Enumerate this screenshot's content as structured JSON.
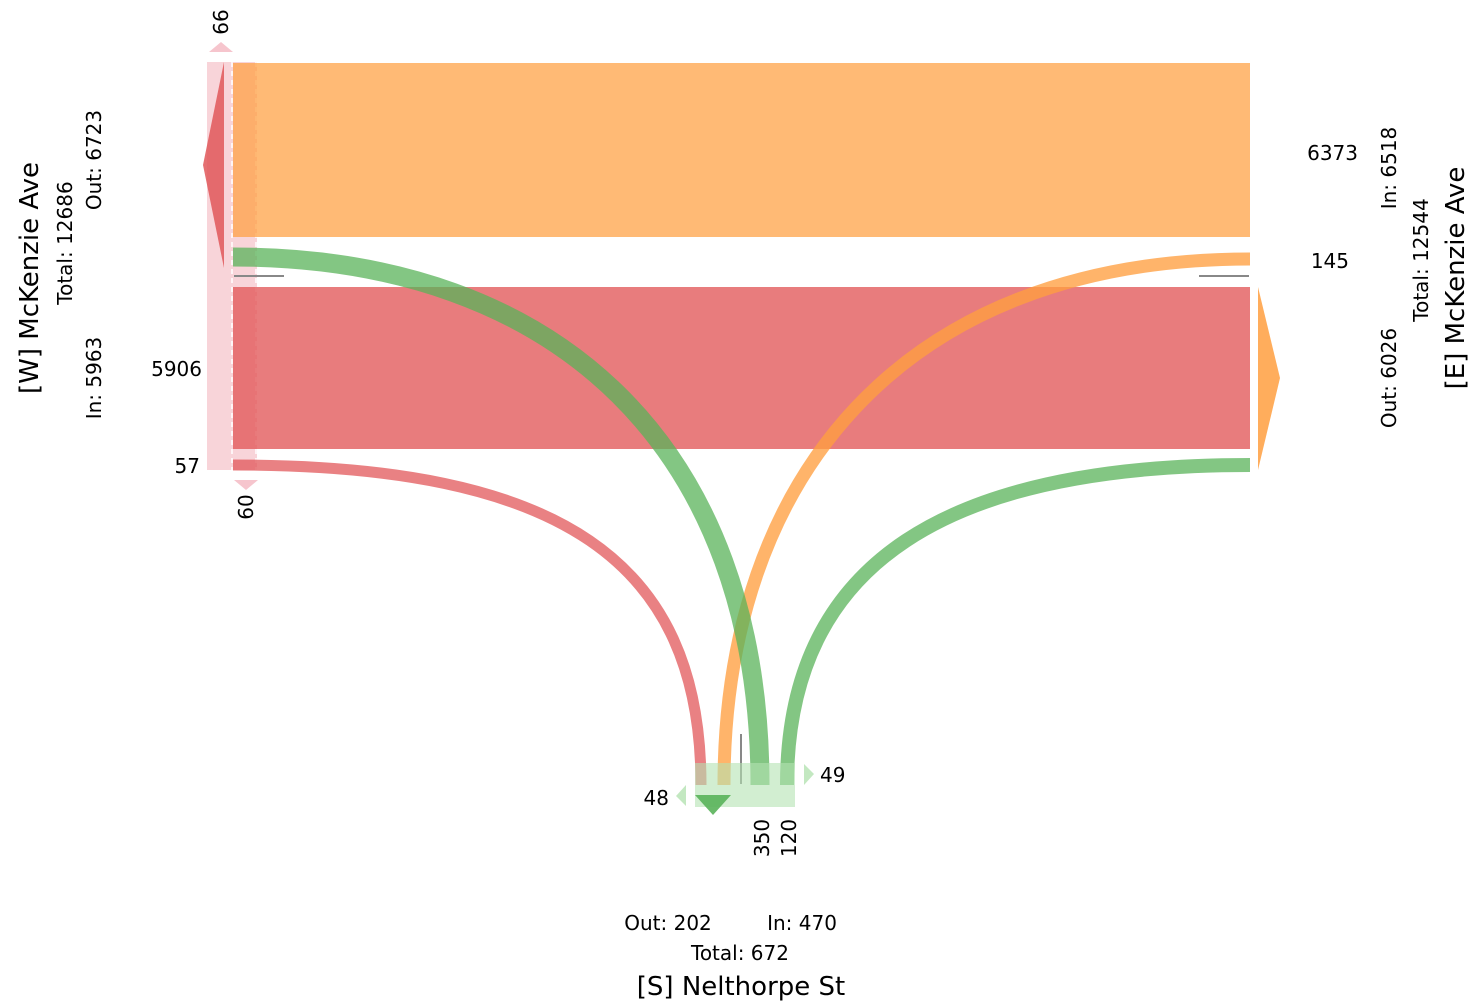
{
  "approaches": {
    "west": {
      "name": "[W] McKenzie Ave",
      "total": "Total: 12686",
      "in": "In: 5963",
      "out": "Out: 6723",
      "color": "#e15759"
    },
    "east": {
      "name": "[E] McKenzie Ave",
      "total": "Total: 12544",
      "in": "In: 6518",
      "out": "Out: 6026",
      "color": "#ff9f40"
    },
    "south": {
      "name": "[S] Nelthorpe St",
      "total": "Total: 672",
      "in": "In: 470",
      "out": "Out: 202",
      "color": "#59b35a"
    }
  },
  "labels": {
    "w_uturn_top": "66",
    "w_uturn_bottom": "60",
    "w_through": "5906",
    "w_right": "57",
    "e_through": "6373",
    "e_left": "145",
    "s_left_out": "48",
    "s_right_out": "49",
    "s_through_a": "350",
    "s_through_b": "120"
  },
  "flows": [
    {
      "from": "east",
      "to": "west",
      "value": 6373,
      "color": "#ff9f40"
    },
    {
      "from": "west",
      "to": "east",
      "value": 5906,
      "color": "#e15759"
    },
    {
      "from": "south",
      "to": "west",
      "value": 350,
      "color": "#59b35a"
    },
    {
      "from": "south",
      "to": "east",
      "value": 120,
      "color": "#59b35a"
    },
    {
      "from": "east",
      "to": "south",
      "value": 145,
      "color": "#ff9f40"
    },
    {
      "from": "west",
      "to": "south",
      "value": 57,
      "color": "#e15759"
    }
  ]
}
